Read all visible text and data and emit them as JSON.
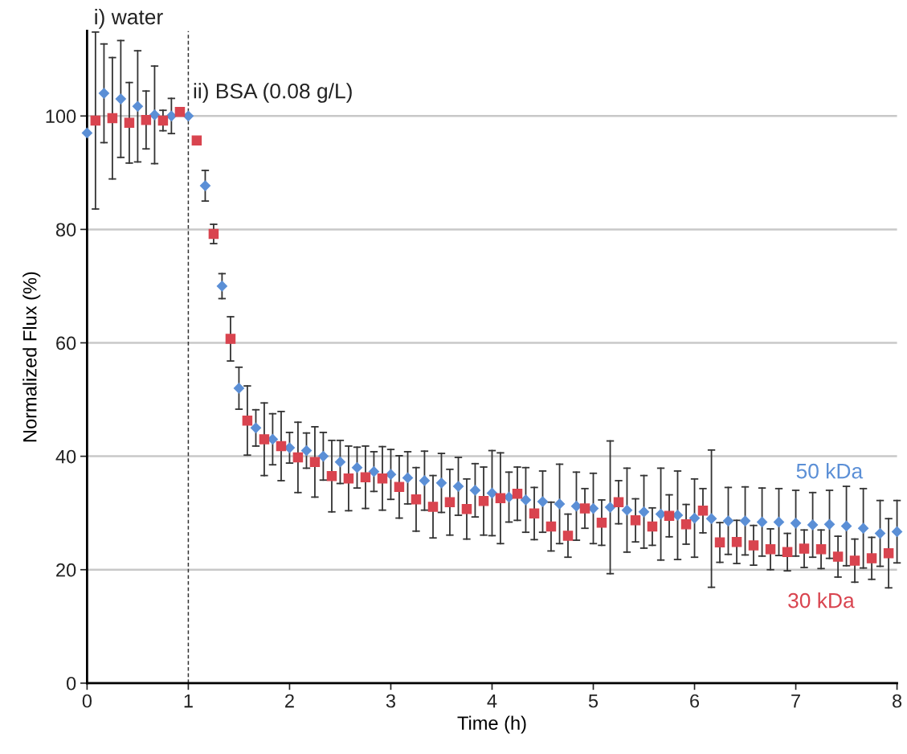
{
  "chart_data": {
    "type": "scatter",
    "xlabel": "Time (h)",
    "ylabel": "Normalized Flux (%)",
    "xlim": [
      0,
      8
    ],
    "xticks": [
      0,
      1,
      2,
      3,
      4,
      5,
      6,
      7,
      8
    ],
    "ylim": [
      0,
      115
    ],
    "yticks": [
      0,
      20,
      40,
      60,
      80,
      100
    ],
    "grid": "y",
    "annotations": [
      "i) water"
    ],
    "ref_lines": [
      {
        "axis": "x",
        "value": 1,
        "color": "#333333",
        "line_style": "dashed",
        "label": "ii) BSA (0.08 g/L)"
      }
    ],
    "series": [
      {
        "name": "50 kDa",
        "color": "#5b8fd6",
        "marker": "diamond",
        "x": [
          0,
          0.167,
          0.333,
          0.5,
          0.667,
          0.833,
          1.0,
          1.167,
          1.333,
          1.5,
          1.667,
          1.833,
          2.0,
          2.167,
          2.333,
          2.5,
          2.667,
          2.833,
          3.0,
          3.167,
          3.333,
          3.5,
          3.667,
          3.833,
          4.0,
          4.167,
          4.333,
          4.5,
          4.667,
          4.833,
          5.0,
          5.167,
          5.333,
          5.5,
          5.667,
          5.833,
          6.0,
          6.167,
          6.333,
          6.5,
          6.667,
          6.833,
          7.0,
          7.167,
          7.333,
          7.5,
          7.667,
          7.833,
          8.0
        ],
        "values": [
          97,
          104,
          103,
          101.7,
          100.2,
          100,
          100,
          87.7,
          70,
          52,
          45,
          43,
          41.5,
          41,
          40,
          39,
          38,
          37.3,
          36.8,
          36.2,
          35.7,
          35.3,
          34.7,
          34,
          33.5,
          32.8,
          32.3,
          32,
          31.6,
          31.2,
          30.8,
          31,
          30.5,
          30.2,
          29.8,
          29.6,
          29.1,
          29,
          28.6,
          28.6,
          28.4,
          28.4,
          28.2,
          27.9,
          28,
          27.7,
          27.3,
          26.4,
          26.7
        ],
        "errors": [
          null,
          8.7,
          10.3,
          9.8,
          8.6,
          3.1,
          null,
          2.7,
          2.2,
          3.7,
          3.2,
          4.5,
          2.7,
          3.1,
          4.2,
          3.8,
          3.6,
          3.5,
          4.4,
          4.6,
          5.2,
          5.2,
          5.1,
          4.7,
          7.5,
          4.4,
          5.7,
          5.4,
          7,
          6,
          6.2,
          11.7,
          7.4,
          6.4,
          8.1,
          7.8,
          6.9,
          12.1,
          5.9,
          6,
          6,
          5.9,
          5.8,
          5.7,
          6,
          7,
          7,
          5.8,
          5.5
        ]
      },
      {
        "name": "30 kDa",
        "color": "#d9444f",
        "marker": "square",
        "x": [
          0.083,
          0.25,
          0.417,
          0.583,
          0.75,
          0.917,
          1.083,
          1.25,
          1.417,
          1.583,
          1.75,
          1.917,
          2.083,
          2.25,
          2.417,
          2.583,
          2.75,
          2.917,
          3.083,
          3.25,
          3.417,
          3.583,
          3.75,
          3.917,
          4.083,
          4.25,
          4.417,
          4.583,
          4.75,
          4.917,
          5.083,
          5.25,
          5.417,
          5.583,
          5.75,
          5.917,
          6.083,
          6.25,
          6.417,
          6.583,
          6.75,
          6.917,
          7.083,
          7.25,
          7.417,
          7.583,
          7.75,
          7.917
        ],
        "values": [
          99.2,
          99.6,
          98.8,
          99.3,
          99.2,
          100.7,
          95.7,
          79.2,
          60.7,
          46.3,
          43,
          41.8,
          39.8,
          39,
          36.5,
          36.1,
          36.3,
          36.1,
          34.6,
          32.4,
          31.1,
          31.9,
          30.7,
          32.1,
          32.6,
          33.4,
          29.9,
          27.6,
          26,
          30.8,
          28.3,
          31.9,
          28.7,
          27.6,
          29.5,
          28,
          30.4,
          24.8,
          24.9,
          24.3,
          23.6,
          23.1,
          23.7,
          23.6,
          22.3,
          21.6,
          22,
          22.9
        ],
        "errors": [
          15.6,
          10.7,
          7.1,
          5.1,
          1.8,
          null,
          null,
          1.7,
          3.9,
          6.1,
          6.4,
          6.1,
          6.2,
          6.2,
          6.3,
          5.7,
          5.5,
          5.6,
          5.5,
          5.6,
          5.5,
          5.8,
          5.3,
          6,
          8,
          4.7,
          4.6,
          4.3,
          3.8,
          3.5,
          4,
          3.8,
          3.8,
          3.3,
          3.7,
          3.5,
          3.9,
          3.5,
          3.8,
          3.5,
          3.6,
          3.3,
          3.3,
          3.4,
          3.6,
          3.8,
          3.7,
          6.1
        ]
      }
    ]
  }
}
